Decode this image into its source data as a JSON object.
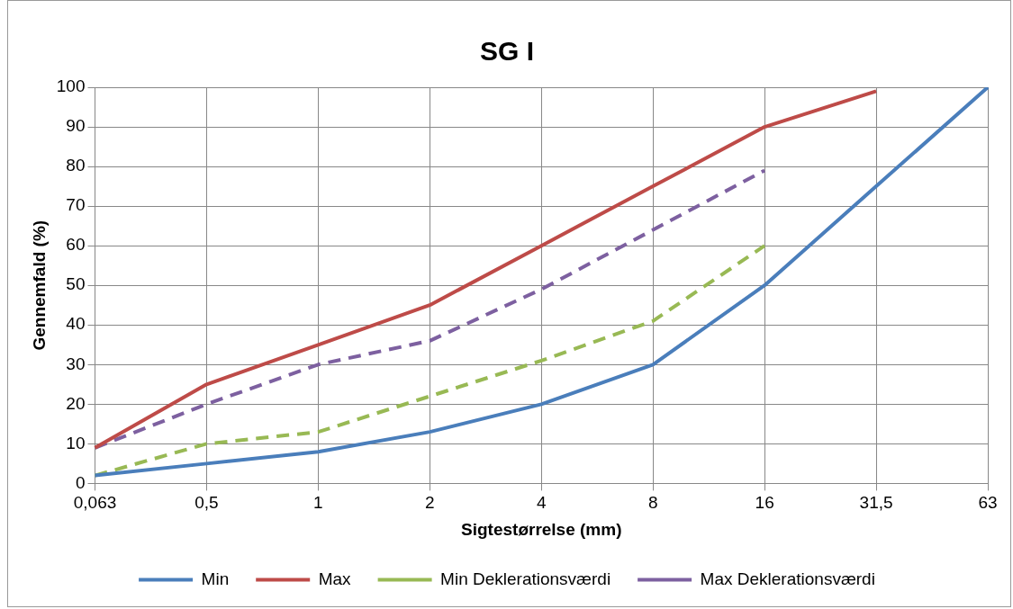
{
  "chart_data": {
    "type": "line",
    "title": "SG I",
    "xlabel": "Sigtestørrelse (mm)",
    "ylabel": "Gennemfald (%)",
    "categories": [
      "0,063",
      "0,5",
      "1",
      "2",
      "4",
      "8",
      "16",
      "31,5",
      "63"
    ],
    "series": [
      {
        "name": "Min",
        "color": "#4a7ebb",
        "values": [
          2,
          5,
          8,
          13,
          20,
          30,
          50,
          75,
          100
        ]
      },
      {
        "name": "Max",
        "color": "#be4b48",
        "values": [
          9,
          25,
          35,
          45,
          60,
          75,
          90,
          99,
          null
        ]
      },
      {
        "name": "Min Deklerationsværdi",
        "color": "#98b954",
        "line_style": "dashed",
        "values": [
          2,
          10,
          13,
          22,
          31,
          41,
          60,
          null,
          null
        ]
      },
      {
        "name": "Max Deklerationsværdi",
        "color": "#7d60a0",
        "line_style": "dashed",
        "values": [
          9,
          20,
          30,
          36,
          49,
          64,
          79,
          null,
          null
        ]
      }
    ],
    "ylim": [
      0,
      100
    ],
    "yticks": [
      0,
      10,
      20,
      30,
      40,
      50,
      60,
      70,
      80,
      90,
      100
    ],
    "grid": true,
    "legend": "bottom",
    "marker": "none",
    "line_style": "solid"
  }
}
